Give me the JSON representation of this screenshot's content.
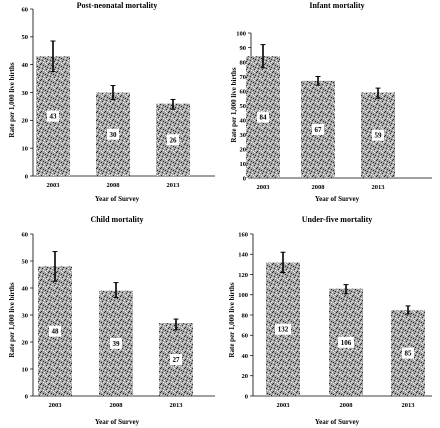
{
  "chart_data": [
    {
      "type": "bar",
      "title": "Post-neonatal mortality",
      "xlabel": "Year of Survey",
      "ylabel": "Rate per 1,000 live births",
      "categories": [
        "2003",
        "2008",
        "2013"
      ],
      "values": [
        43,
        30,
        26
      ],
      "data_labels": [
        "43",
        "30",
        "26"
      ],
      "error_bars": [
        [
          37.5,
          48.5
        ],
        [
          27.5,
          32.5
        ],
        [
          24,
          27.5
        ]
      ],
      "ylim": [
        0,
        60
      ],
      "yticks": [
        "0",
        "10",
        "20",
        "30",
        "40",
        "50",
        "60"
      ],
      "grid": false,
      "legend": "none"
    },
    {
      "type": "bar",
      "title": "Infant mortality",
      "xlabel": "Year of Survey",
      "ylabel": "Rate per 1,000 live births",
      "categories": [
        "2003",
        "2008",
        "2013"
      ],
      "values": [
        84,
        67,
        59
      ],
      "data_labels": [
        "84",
        "67",
        "59"
      ],
      "error_bars": [
        [
          76,
          92
        ],
        [
          64,
          70
        ],
        [
          55,
          62
        ]
      ],
      "ylim": [
        0,
        100
      ],
      "yticks": [
        "0",
        "10",
        "20",
        "30",
        "40",
        "50",
        "60",
        "70",
        "80",
        "90",
        "100"
      ],
      "grid": false,
      "legend": "none"
    },
    {
      "type": "bar",
      "title": "Child mortality",
      "xlabel": "Year of Survey",
      "ylabel": "Rate per 1,000 live births",
      "categories": [
        "2003",
        "2008",
        "2013"
      ],
      "values": [
        48,
        39,
        27
      ],
      "data_labels": [
        "48",
        "39",
        "27"
      ],
      "error_bars": [
        [
          42.5,
          53.5
        ],
        [
          36.5,
          42
        ],
        [
          24.5,
          28.5
        ]
      ],
      "ylim": [
        0,
        60
      ],
      "yticks": [
        "0",
        "10",
        "20",
        "30",
        "40",
        "50",
        "60"
      ],
      "grid": false,
      "legend": "none"
    },
    {
      "type": "bar",
      "title": "Under-five mortality",
      "xlabel": "Year of Survey",
      "ylabel": "Rate per 1,000 live births",
      "categories": [
        "2003",
        "2008",
        "2013"
      ],
      "values": [
        132,
        106,
        85
      ],
      "data_labels": [
        "132",
        "106",
        "85"
      ],
      "error_bars": [
        [
          122,
          142
        ],
        [
          101,
          110
        ],
        [
          81,
          89
        ]
      ],
      "ylim": [
        0,
        160
      ],
      "yticks": [
        "0",
        "20",
        "40",
        "60",
        "80",
        "100",
        "120",
        "140",
        "160"
      ],
      "grid": false,
      "legend": "none"
    }
  ],
  "colors": {
    "bar_base": "#a4a4a4",
    "bar_speckle_dark": "#262626",
    "bar_speckle_light": "#f2f2f2",
    "axis": "#000000",
    "label_box": "#ffffff"
  }
}
